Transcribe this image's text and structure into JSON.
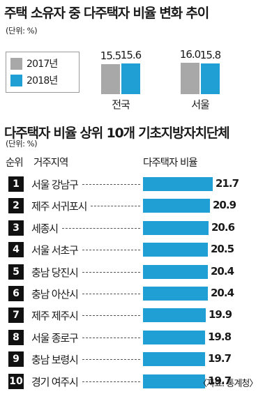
{
  "section1": {
    "title": "주택 소유자 중 다주택자 비율 변화 추이",
    "unit": "(단위: %)",
    "legend": [
      {
        "label": "2017년",
        "color": "#a8a8a8"
      },
      {
        "label": "2018년",
        "color": "#1f9fd4"
      }
    ]
  },
  "section2": {
    "title": "다주택자 비율 상위 10개 기초지방자치단체",
    "unit": "(단위: %)",
    "col_rank": "순위",
    "col_region": "거주지역",
    "col_ratio": "다주택자 비율",
    "source": "〈자료: 통계청〉"
  },
  "chart_data": [
    {
      "type": "bar",
      "title": "주택 소유자 중 다주택자 비율 변화 추이",
      "categories": [
        "전국",
        "서울"
      ],
      "series": [
        {
          "name": "2017년",
          "values": [
            15.5,
            16.0
          ]
        },
        {
          "name": "2018년",
          "values": [
            15.6,
            15.8
          ]
        }
      ],
      "value_labels": [
        [
          "15.5",
          "16.0"
        ],
        [
          "15.6",
          "15.8"
        ]
      ],
      "ylabel": "(단위: %)",
      "ylim": [
        0,
        17
      ]
    },
    {
      "type": "bar",
      "orientation": "horizontal",
      "title": "다주택자 비율 상위 10개 기초지방자치단체",
      "ranks": [
        "1",
        "2",
        "3",
        "4",
        "5",
        "6",
        "7",
        "8",
        "9",
        "10"
      ],
      "categories": [
        "서울 강남구",
        "제주 서귀포시",
        "세종시",
        "서울 서초구",
        "충남 당진시",
        "충남 아산시",
        "제주 제주시",
        "서울 종로구",
        "충남 보령시",
        "경기 여주시"
      ],
      "values": [
        21.7,
        20.9,
        20.6,
        20.5,
        20.4,
        20.4,
        19.9,
        19.8,
        19.7,
        19.7
      ],
      "value_labels": [
        "21.7",
        "20.9",
        "20.6",
        "20.5",
        "20.4",
        "20.4",
        "19.9",
        "19.8",
        "19.7",
        "19.7"
      ],
      "xlabel": "다주택자 비율",
      "color": "#1f9fd4"
    }
  ]
}
